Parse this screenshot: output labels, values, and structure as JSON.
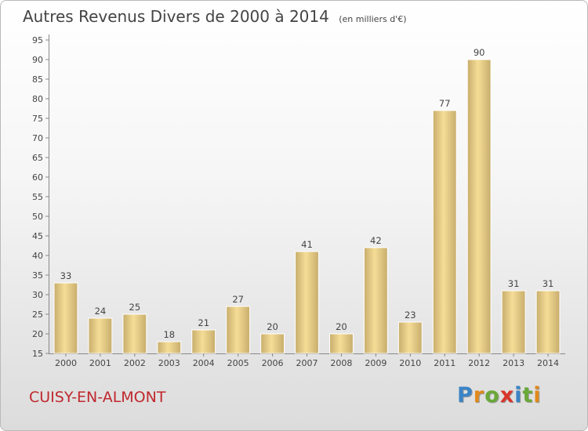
{
  "chart_data": {
    "type": "bar",
    "title": "Autres Revenus Divers de 2000 à 2014",
    "unit_label": "(en milliers d'€)",
    "categories": [
      "2000",
      "2001",
      "2002",
      "2003",
      "2004",
      "2005",
      "2006",
      "2007",
      "2008",
      "2009",
      "2010",
      "2011",
      "2012",
      "2013",
      "2014"
    ],
    "values": [
      33,
      24,
      25,
      18,
      21,
      27,
      20,
      41,
      20,
      42,
      23,
      77,
      90,
      31,
      31
    ],
    "ylim": [
      15,
      95
    ],
    "yticks": [
      15,
      20,
      25,
      30,
      35,
      40,
      45,
      50,
      55,
      60,
      65,
      70,
      75,
      80,
      85,
      90,
      95
    ],
    "grid": false,
    "colors": {
      "bar_light": "#f5dd97",
      "bar_dark": "#c8ad6c",
      "bar_edge": "#ffffff"
    }
  },
  "footer": {
    "town": "CUISY-EN-ALMONT",
    "logo": {
      "letters": [
        "P",
        "r",
        "o",
        "x",
        "i",
        "t",
        "i"
      ],
      "colors": [
        "#3a84c6",
        "#e0891c",
        "#6aa839",
        "#d9342a",
        "#3a84c6",
        "#6aa839",
        "#e0891c"
      ]
    }
  }
}
